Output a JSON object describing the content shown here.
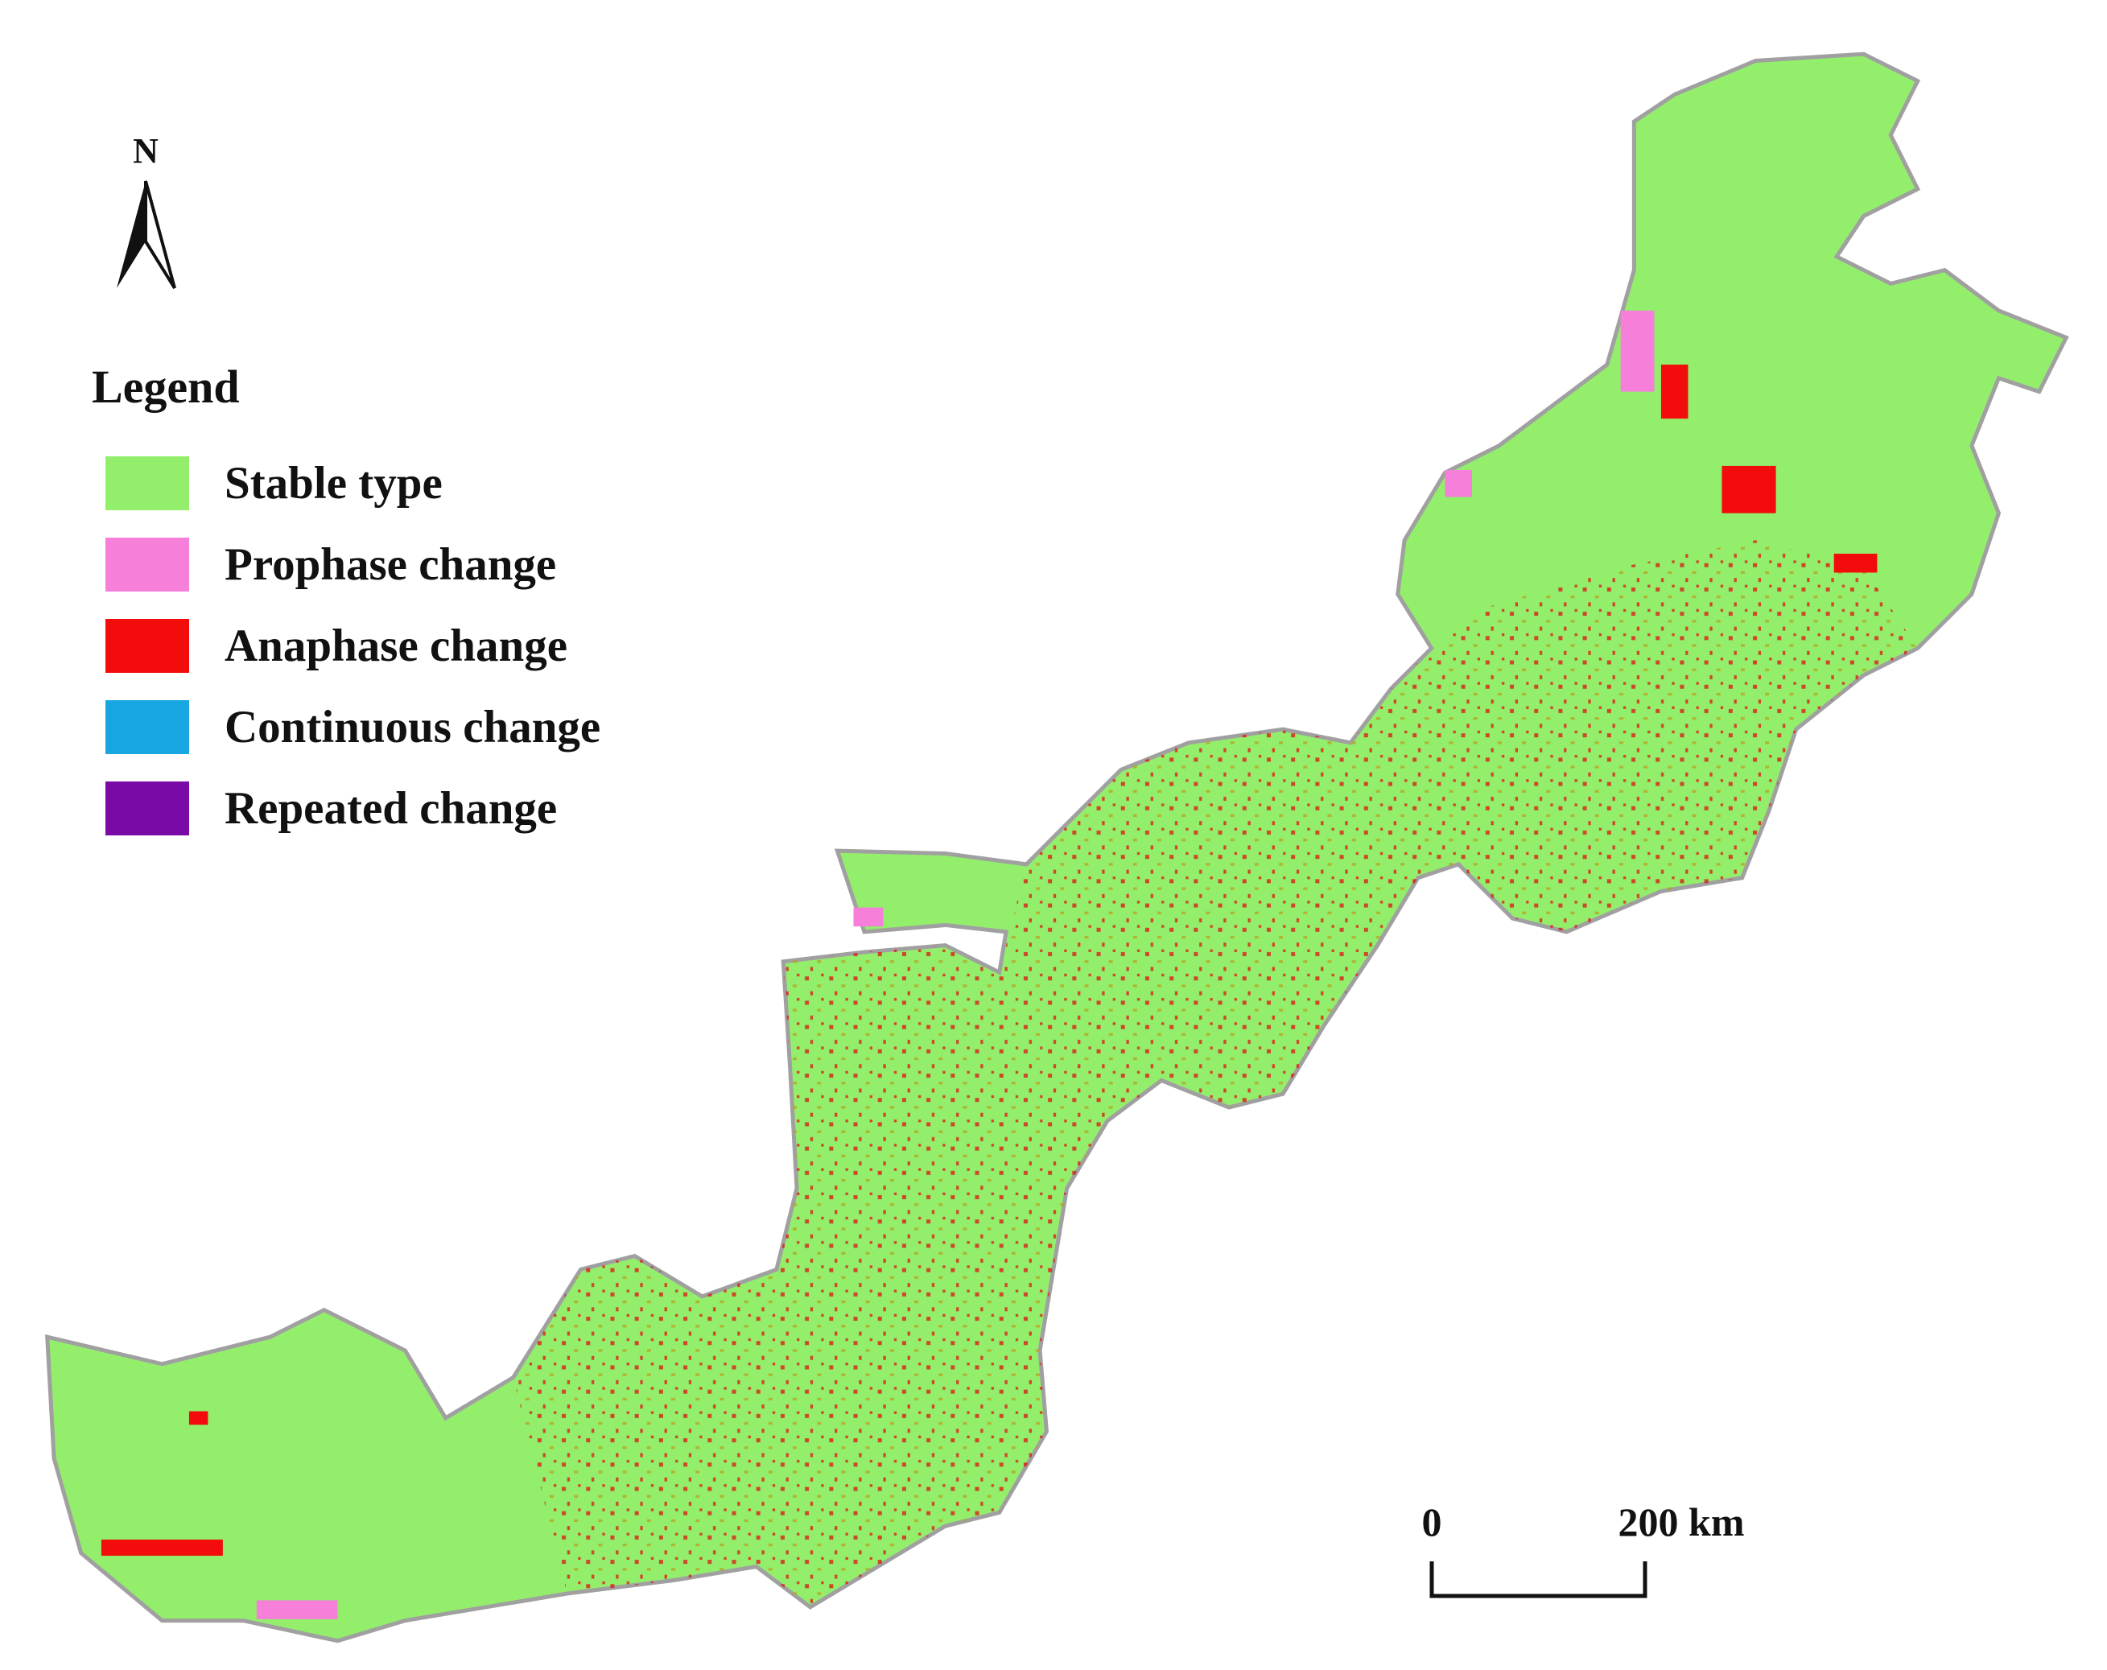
{
  "north": "N",
  "legend": {
    "title": "Legend",
    "items": [
      {
        "label": "Stable type",
        "color": "#93ef6b"
      },
      {
        "label": "Prophase change",
        "color": "#f57fd9"
      },
      {
        "label": "Anaphase change",
        "color": "#f20c0c"
      },
      {
        "label": "Continuous change",
        "color": "#17a6e0"
      },
      {
        "label": "Repeated change",
        "color": "#7a0aa6"
      }
    ]
  },
  "scale_bar": {
    "start": "0",
    "end": "200 km"
  }
}
